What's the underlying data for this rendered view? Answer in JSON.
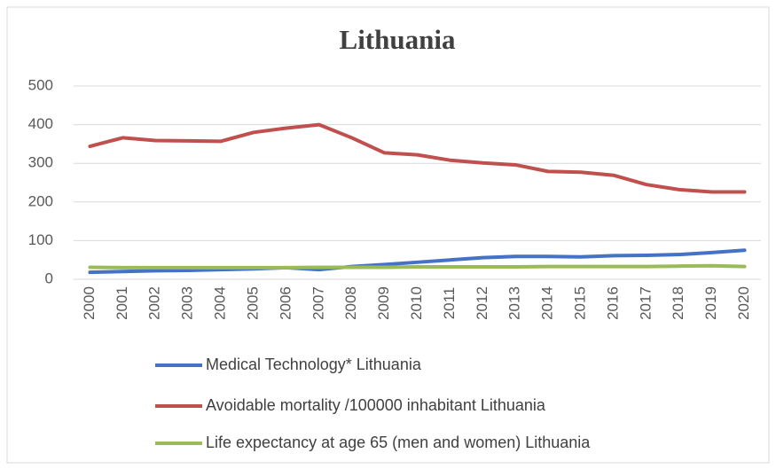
{
  "chart_data": {
    "type": "line",
    "title": "Lithuania",
    "categories": [
      "2000",
      "2001",
      "2002",
      "2003",
      "2004",
      "2005",
      "2006",
      "2007",
      "2008",
      "2009",
      "2010",
      "2011",
      "2012",
      "2013",
      "2014",
      "2015",
      "2016",
      "2017",
      "2018",
      "2019",
      "2020"
    ],
    "series": [
      {
        "name": "Medical Technology* Lithuania",
        "color": "#4472c4",
        "values": [
          18,
          20,
          22,
          23,
          25,
          27,
          30,
          25,
          33,
          38,
          44,
          50,
          56,
          59,
          59,
          58,
          61,
          62,
          64,
          69,
          75
        ]
      },
      {
        "name": "Avoidable mortality /100000 inhabitant Lithuania",
        "color": "#c0504d",
        "values": [
          344,
          366,
          359,
          358,
          357,
          380,
          391,
          400,
          366,
          327,
          322,
          308,
          301,
          296,
          279,
          277,
          269,
          245,
          232,
          226,
          226
        ]
      },
      {
        "name": "Life expectancy at age 65 (men and women) Lithuania",
        "color": "#9bbb59",
        "values": [
          31,
          30,
          30,
          30,
          30,
          30,
          30,
          31,
          31,
          31,
          32,
          32,
          32,
          32,
          33,
          33,
          33,
          33,
          34,
          35,
          33
        ]
      }
    ],
    "ylim": [
      0,
      500
    ],
    "yticks": [
      0,
      100,
      200,
      300,
      400,
      500
    ],
    "grid": true,
    "legend": "bottom"
  }
}
